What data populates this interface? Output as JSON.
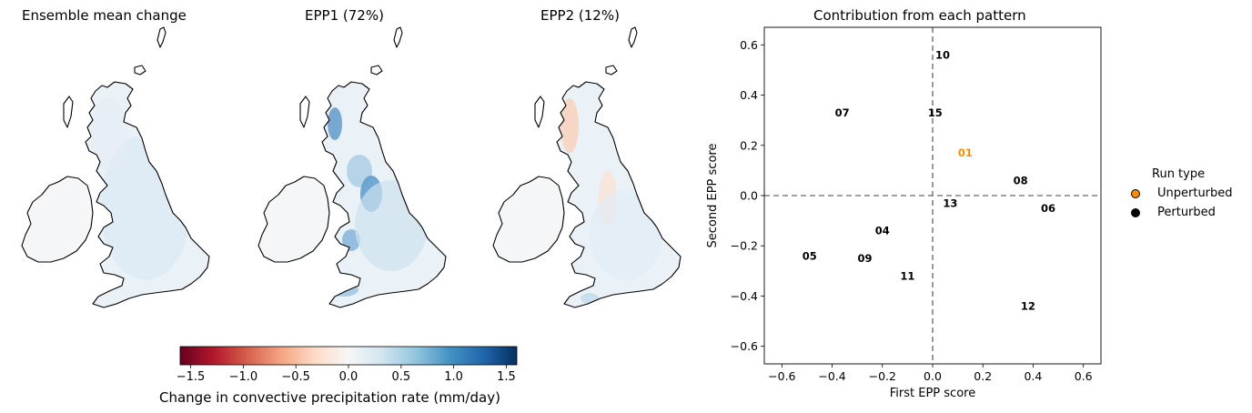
{
  "maps": {
    "panel1_title": "Ensemble mean change",
    "panel2_title": "EPP1 (72%)",
    "panel3_title": "EPP2 (12%)"
  },
  "colorbar": {
    "label": "Change in convective precipitation rate (mm/day)",
    "ticks": [
      "−1.5",
      "−1.0",
      "−0.5",
      "0.0",
      "0.5",
      "1.0",
      "1.5"
    ],
    "tick_values": [
      -1.5,
      -1.0,
      -0.5,
      0.0,
      0.5,
      1.0,
      1.5
    ],
    "range": [
      -1.6,
      1.6
    ],
    "colormap": "RdBu"
  },
  "chart_data": {
    "type": "scatter",
    "title": "Contribution from each pattern",
    "xlabel": "First EPP score",
    "ylabel": "Second EPP score",
    "xlim": [
      -0.67,
      0.67
    ],
    "ylim": [
      -0.67,
      0.67
    ],
    "xticks": [
      -0.6,
      -0.4,
      -0.2,
      0.0,
      0.2,
      0.4,
      0.6
    ],
    "xtick_labels": [
      "−0.6",
      "−0.4",
      "−0.2",
      "0.0",
      "0.2",
      "0.4",
      "0.6"
    ],
    "yticks": [
      -0.6,
      -0.4,
      -0.2,
      0.0,
      0.2,
      0.4,
      0.6
    ],
    "ytick_labels": [
      "−0.6",
      "−0.4",
      "−0.2",
      "0.0",
      "0.2",
      "0.4",
      "0.6"
    ],
    "reference_lines": {
      "x": 0,
      "y": 0,
      "style": "dashed",
      "color": "#808080"
    },
    "grid": false,
    "points": [
      {
        "label": "01",
        "x": 0.13,
        "y": 0.17,
        "type": "Unperturbed"
      },
      {
        "label": "04",
        "x": -0.2,
        "y": -0.14,
        "type": "Perturbed"
      },
      {
        "label": "05",
        "x": -0.49,
        "y": -0.24,
        "type": "Perturbed"
      },
      {
        "label": "06",
        "x": 0.46,
        "y": -0.05,
        "type": "Perturbed"
      },
      {
        "label": "07",
        "x": -0.36,
        "y": 0.33,
        "type": "Perturbed"
      },
      {
        "label": "08",
        "x": 0.35,
        "y": 0.06,
        "type": "Perturbed"
      },
      {
        "label": "09",
        "x": -0.27,
        "y": -0.25,
        "type": "Perturbed"
      },
      {
        "label": "10",
        "x": 0.04,
        "y": 0.56,
        "type": "Perturbed"
      },
      {
        "label": "11",
        "x": -0.1,
        "y": -0.32,
        "type": "Perturbed"
      },
      {
        "label": "12",
        "x": 0.38,
        "y": -0.44,
        "type": "Perturbed"
      },
      {
        "label": "13",
        "x": 0.07,
        "y": -0.03,
        "type": "Perturbed"
      },
      {
        "label": "15",
        "x": 0.01,
        "y": 0.33,
        "type": "Perturbed"
      }
    ],
    "legend": {
      "title": "Run type",
      "placement": "right outside",
      "items": [
        {
          "name": "Unperturbed",
          "color": "#ff8c00"
        },
        {
          "name": "Perturbed",
          "color": "#000000"
        }
      ]
    }
  }
}
